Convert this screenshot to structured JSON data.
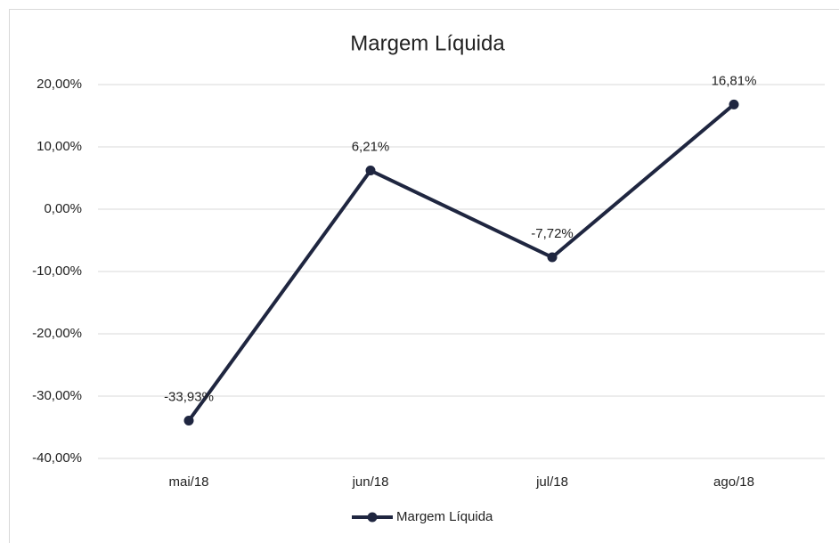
{
  "chart_data": {
    "type": "line",
    "title": "Margem Líquida",
    "categories": [
      "mai/18",
      "jun/18",
      "jul/18",
      "ago/18"
    ],
    "series": [
      {
        "name": "Margem Líquida",
        "color": "#1f2640",
        "values": [
          -33.93,
          6.21,
          -7.72,
          16.81
        ],
        "value_labels": [
          "-33,93%",
          "6,21%",
          "-7,72%",
          "16,81%"
        ]
      }
    ],
    "ylim": [
      -40,
      20
    ],
    "yticks": [
      {
        "value": -40,
        "label": "-40,00%"
      },
      {
        "value": -30,
        "label": "-30,00%"
      },
      {
        "value": -20,
        "label": "-20,00%"
      },
      {
        "value": -10,
        "label": "-10,00%"
      },
      {
        "value": 0,
        "label": "0,00%"
      },
      {
        "value": 10,
        "label": "10,00%"
      },
      {
        "value": 20,
        "label": "20,00%"
      }
    ],
    "grid": true,
    "legend": "bottom"
  }
}
